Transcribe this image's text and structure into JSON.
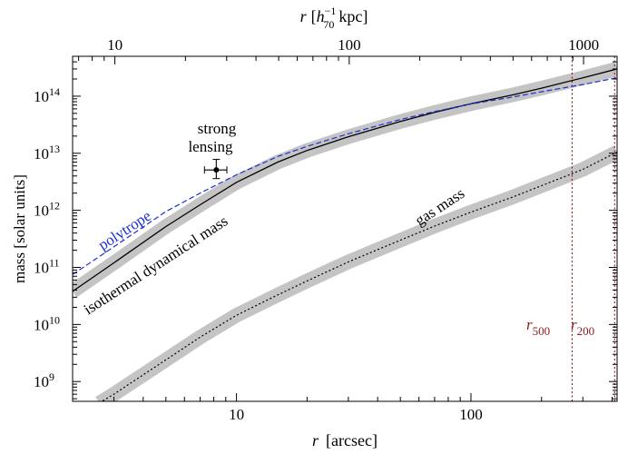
{
  "chart_data": {
    "type": "line",
    "xlabel_var": "r",
    "xlabel_unit": "[arcsec]",
    "ylabel": "mass [solar units]",
    "top_xlabel_var": "r",
    "top_xlabel_h": "h",
    "top_xlabel_h_sup": "−1",
    "top_xlabel_h_sub": "70",
    "top_xlabel_unit": "kpc]",
    "x_scale": "log",
    "y_scale": "log",
    "xlim": [
      2,
      420
    ],
    "ylim": [
      450000000.0,
      500000000000000.0
    ],
    "top_xlim": [
      6.6,
      1390
    ],
    "x_ticks": [
      {
        "value": 10,
        "label": "10"
      },
      {
        "value": 100,
        "label": "100"
      }
    ],
    "top_x_ticks": [
      {
        "value": 10,
        "label": "10"
      },
      {
        "value": 100,
        "label": "100"
      },
      {
        "value": 1000,
        "label": "1000"
      }
    ],
    "y_ticks": [
      {
        "value": 1000000000.0,
        "base": "10",
        "exp": "9"
      },
      {
        "value": 10000000000.0,
        "base": "10",
        "exp": "10"
      },
      {
        "value": 100000000000.0,
        "base": "10",
        "exp": "11"
      },
      {
        "value": 1000000000000.0,
        "base": "10",
        "exp": "12"
      },
      {
        "value": 10000000000000.0,
        "base": "10",
        "exp": "13"
      },
      {
        "value": 100000000000000.0,
        "base": "10",
        "exp": "14"
      }
    ],
    "series": [
      {
        "label": "isothermal dynamical mass",
        "style": "solid",
        "color": "#000000",
        "band_color": "#c4c4c4",
        "x": [
          2,
          3,
          5,
          7,
          10,
          15,
          20,
          30,
          50,
          70,
          100,
          150,
          200,
          300,
          420
        ],
        "y": [
          38000000000.0,
          120000000000.0,
          520000000000.0,
          1250000000000.0,
          3100000000000.0,
          7000000000000.0,
          11200000000000.0,
          19500000000000.0,
          36000000000000.0,
          52000000000000.0,
          74000000000000.0,
          105000000000000.0,
          138000000000000.0,
          210000000000000.0,
          300000000000000.0
        ]
      },
      {
        "label": "polytrope",
        "style": "dashed",
        "color": "#1f2fd6",
        "x": [
          2,
          3,
          5,
          7,
          10,
          15,
          20,
          30,
          50,
          70,
          100,
          150,
          200,
          300,
          420
        ],
        "y": [
          75000000000.0,
          230000000000.0,
          950000000000.0,
          2000000000000.0,
          4200000000000.0,
          8800000000000.0,
          13200000000000.0,
          22000000000000.0,
          39000000000000.0,
          54000000000000.0,
          73000000000000.0,
          96000000000000.0,
          120000000000000.0,
          160000000000000.0,
          210000000000000.0
        ]
      },
      {
        "label": "gas mass",
        "style": "dotted",
        "color": "#000000",
        "band_color": "#c4c4c4",
        "x": [
          2.6,
          3,
          5,
          7,
          10,
          15,
          20,
          30,
          50,
          70,
          100,
          150,
          200,
          300,
          420
        ],
        "y": [
          420000000.0,
          600000000.0,
          2400000000.0,
          6000000000.0,
          14500000000.0,
          33000000000.0,
          58000000000.0,
          125000000000.0,
          300000000000.0,
          530000000000.0,
          930000000000.0,
          1700000000000.0,
          2700000000000.0,
          5200000000000.0,
          10500000000000.0
        ]
      }
    ],
    "strong_lensing": {
      "label_line1": "strong",
      "label_line2": "lensing",
      "x": 8.2,
      "y": 5100000000000.0,
      "x_err": [
        7.3,
        9.1
      ],
      "y_err": [
        3600000000000.0,
        7800000000000.0
      ]
    },
    "vlines": [
      {
        "x": 270,
        "label": "r",
        "sub": "500",
        "color": "#8b1a1a"
      },
      {
        "x": 410,
        "label": "r",
        "sub": "200",
        "color": "#8b1a1a"
      }
    ]
  }
}
